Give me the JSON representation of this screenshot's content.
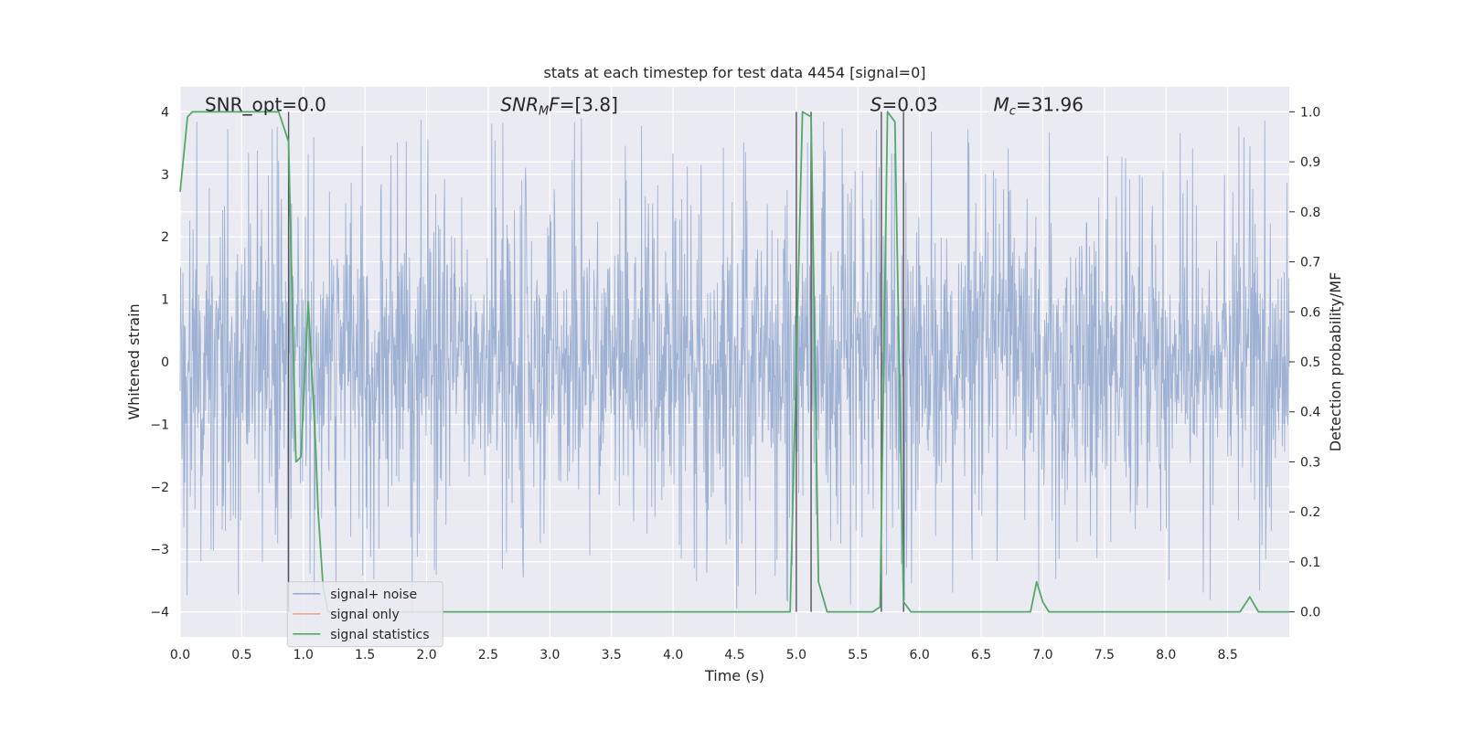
{
  "chart_data": {
    "type": "line",
    "title": "stats at each timestep for test data 4454 [signal=0]",
    "xlabel": "Time (s)",
    "ylabel": "Whitened strain",
    "ylabel_right": "Detection probability/MF",
    "xlim": [
      0.0,
      9.0
    ],
    "ylim": [
      -4.4,
      4.4
    ],
    "ylim_right": [
      -0.05,
      1.05
    ],
    "x_ticks": [
      "0.0",
      "0.5",
      "1.0",
      "1.5",
      "2.0",
      "2.5",
      "3.0",
      "3.5",
      "4.0",
      "4.5",
      "5.0",
      "5.5",
      "6.0",
      "6.5",
      "7.0",
      "7.5",
      "8.0",
      "8.5"
    ],
    "y_ticks": [
      "4",
      "3",
      "2",
      "1",
      "0",
      "−1",
      "−2",
      "−3",
      "−4"
    ],
    "y_ticks_right": [
      "1.0",
      "0.9",
      "0.8",
      "0.7",
      "0.6",
      "0.5",
      "0.4",
      "0.3",
      "0.2",
      "0.1",
      "0.0"
    ],
    "grid": true,
    "legend_position": "lower-left",
    "annotations": {
      "snr_opt": "SNR_opt=0.0",
      "snr_mf_main": "SNR",
      "snr_mf_sub": "M",
      "snr_mf_f": "F",
      "snr_mf_value": "=[3.8]",
      "s_main": "S",
      "s_value": "=0.03",
      "mc_main": "M",
      "mc_sub": "c",
      "mc_value": "=31.96"
    },
    "series": [
      {
        "name": "signal+ noise",
        "color": "#9aaed1",
        "description_envelope_y": [
          -4.0,
          4.0
        ],
        "dense_noise": true
      },
      {
        "name": "signal only",
        "color": "#e8a988",
        "values": []
      },
      {
        "name": "signal statistics",
        "color": "#55a868",
        "axis": "right",
        "x": [
          0.0,
          0.06,
          0.1,
          0.8,
          0.88,
          0.94,
          0.98,
          1.04,
          1.06,
          1.1,
          1.12,
          1.16,
          1.2,
          2.0,
          4.0,
          4.95,
          5.05,
          5.12,
          5.18,
          5.25,
          5.62,
          5.68,
          5.74,
          5.8,
          5.87,
          5.93,
          5.98,
          6.9,
          6.95,
          7.0,
          7.05,
          8.6,
          8.68,
          8.75,
          9.0
        ],
        "values": [
          0.84,
          0.99,
          1.0,
          1.0,
          0.94,
          0.3,
          0.31,
          0.62,
          0.52,
          0.33,
          0.2,
          0.05,
          0.0,
          0.0,
          0.0,
          0.0,
          1.0,
          0.99,
          0.06,
          0.0,
          0.0,
          0.01,
          1.0,
          0.98,
          0.02,
          0.0,
          0.0,
          0.0,
          0.06,
          0.02,
          0.0,
          0.0,
          0.03,
          0.0,
          0.0
        ]
      }
    ],
    "vertical_markers_x": [
      0.88,
      5.0,
      5.12,
      5.69,
      5.87
    ],
    "vertical_marker_color": "#555555"
  }
}
